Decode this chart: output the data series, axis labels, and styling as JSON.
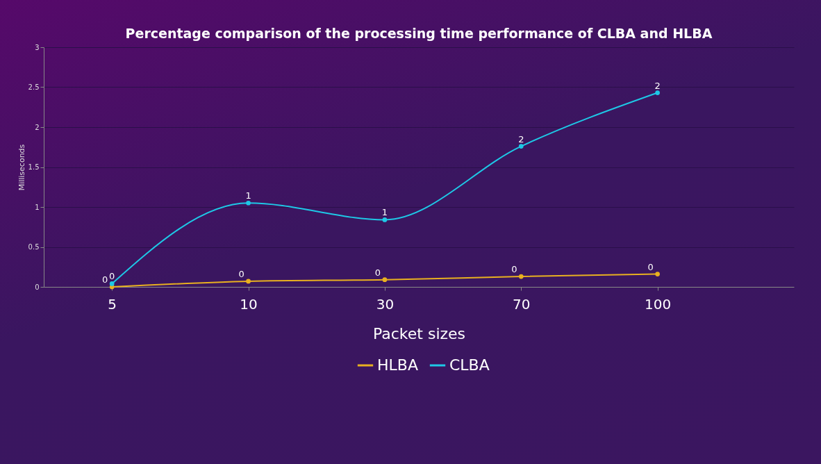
{
  "chart_data": {
    "type": "line",
    "title": "Percentage comparison of the processing time performance of CLBA and HLBA",
    "xlabel": "Packet sizes",
    "ylabel": "Milliseconds",
    "categories": [
      "5",
      "10",
      "30",
      "70",
      "100"
    ],
    "series": [
      {
        "name": "HLBA",
        "color": "#e8b020",
        "values": [
          0,
          0.07,
          0.09,
          0.13,
          0.16
        ],
        "value_labels": [
          "0",
          "0",
          "0",
          "0",
          "0"
        ]
      },
      {
        "name": "CLBA",
        "color": "#1ec8e6",
        "values": [
          0.04,
          1.05,
          0.84,
          1.76,
          2.43
        ],
        "value_labels": [
          "0",
          "1",
          "1",
          "2",
          "2"
        ]
      }
    ],
    "ylim": [
      0,
      3
    ],
    "yticks": [
      0,
      0.5,
      1,
      1.5,
      2,
      2.5,
      3
    ],
    "grid": "y",
    "legend": "bottom",
    "marker": "circle",
    "line_style": "solid"
  }
}
